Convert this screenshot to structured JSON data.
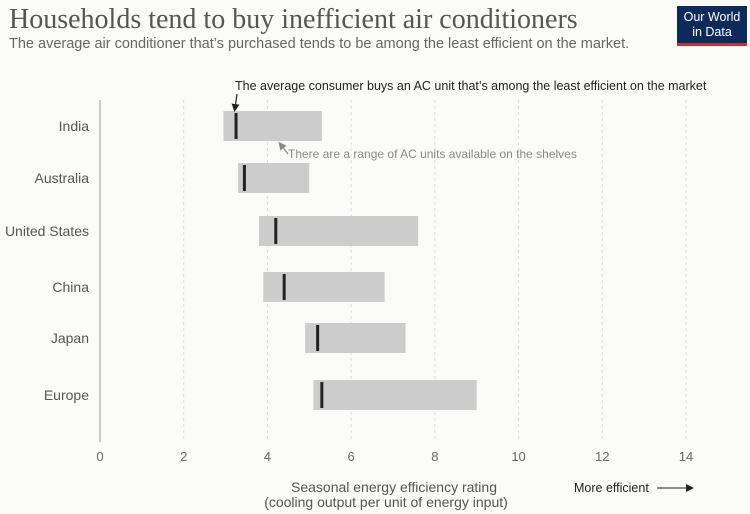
{
  "header": {
    "title": "Households tend to buy inefficient air conditioners",
    "subtitle": "The average air conditioner that’s purchased tends to be among the least efficient on the market.",
    "logo_line1": "Our World",
    "logo_line2": "in Data"
  },
  "chart_data": {
    "type": "bar",
    "categories": [
      "India",
      "Australia",
      "United States",
      "China",
      "Japan",
      "Europe"
    ],
    "ranges": [
      {
        "name": "India",
        "min": 2.95,
        "max": 5.3,
        "average": 3.25
      },
      {
        "name": "Australia",
        "min": 3.3,
        "max": 5.0,
        "average": 3.45
      },
      {
        "name": "United States",
        "min": 3.8,
        "max": 7.6,
        "average": 4.2
      },
      {
        "name": "China",
        "min": 3.9,
        "max": 6.8,
        "average": 4.4
      },
      {
        "name": "Japan",
        "min": 4.9,
        "max": 7.3,
        "average": 5.2
      },
      {
        "name": "Europe",
        "min": 5.1,
        "max": 9.0,
        "average": 5.3
      }
    ],
    "xlim": [
      0,
      14
    ],
    "xticks": [
      0,
      2,
      4,
      6,
      8,
      10,
      12,
      14
    ],
    "xlabel": "Seasonal energy efficiency rating",
    "xlabel_sub": "(cooling output per unit of energy input)",
    "direction_note": "More efficient",
    "annotations": {
      "average": "The average consumer buys an AC unit that’s among the least efficient on the market",
      "range": "There are a range of AC units available on the shelves"
    },
    "grid": true,
    "colors": {
      "range_bar": "#cccccc",
      "average_marker": "#222222",
      "grid": "#dcdcdc"
    }
  }
}
